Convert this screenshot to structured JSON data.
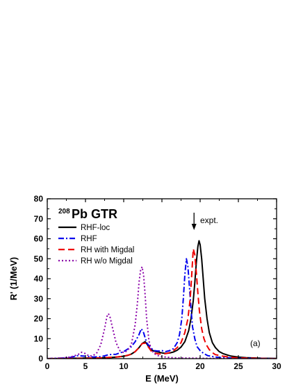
{
  "chart_data": {
    "type": "line",
    "title_superscript": "208",
    "title": "Pb GTR",
    "xlabel": "E (MeV)",
    "ylabel": "R' (1/MeV)",
    "xlim": [
      0,
      30
    ],
    "ylim": [
      0,
      80
    ],
    "xticks": [
      0,
      5,
      10,
      15,
      20,
      25,
      30
    ],
    "yticks": [
      0,
      10,
      20,
      30,
      40,
      50,
      60,
      70,
      80
    ],
    "legend_position": "top-left",
    "annotations": {
      "arrow_label": "expt.",
      "arrow_x": 19.2,
      "panel_label": "(a)"
    },
    "series": [
      {
        "name": "RHF-loc",
        "color": "#000000",
        "dash": "solid",
        "x": [
          0,
          2,
          4,
          6,
          8,
          9,
          10,
          10.5,
          11,
          11.5,
          12,
          12.4,
          12.8,
          13.1,
          13.5,
          14,
          14.5,
          15,
          15.5,
          16,
          16.5,
          17,
          17.5,
          18,
          18.5,
          18.8,
          19.1,
          19.3,
          19.5,
          19.7,
          19.85,
          20,
          20.2,
          20.4,
          20.6,
          20.9,
          21.2,
          21.6,
          22,
          22.5,
          23,
          24,
          25,
          26,
          28,
          30
        ],
        "y": [
          0,
          0.1,
          0.2,
          0.3,
          0.5,
          0.8,
          1.2,
          1.6,
          2.3,
          3.5,
          5.5,
          7.5,
          8.5,
          7,
          4.5,
          3.8,
          3.3,
          2.9,
          2.6,
          2.8,
          3.3,
          4.2,
          5.8,
          8.5,
          14,
          20,
          29,
          38,
          48,
          56,
          59,
          57,
          50,
          40,
          30,
          20,
          13,
          8,
          5.5,
          3.5,
          2.5,
          1.3,
          0.8,
          0.5,
          0.2,
          0.1
        ]
      },
      {
        "name": "RHF",
        "color": "#0000ee",
        "dash": "dashdot",
        "x": [
          0,
          2,
          3,
          4,
          5,
          6,
          7,
          7.5,
          8,
          9,
          10,
          11,
          11.5,
          12,
          12.3,
          12.6,
          13,
          13.5,
          14,
          14.5,
          15,
          15.5,
          16,
          16.5,
          17,
          17.3,
          17.6,
          17.8,
          18,
          18.2,
          18.4,
          18.6,
          18.8,
          19,
          19.3,
          19.6,
          20,
          20.5,
          21,
          22,
          23,
          25,
          28,
          30
        ],
        "y": [
          0,
          0.3,
          0.6,
          1.5,
          1.2,
          0.8,
          1,
          1.4,
          2,
          2.2,
          3.5,
          6,
          8.5,
          12,
          15,
          13,
          8,
          5.5,
          4,
          3.8,
          4,
          3.5,
          4,
          5,
          8,
          12,
          20,
          30,
          42,
          50,
          46,
          36,
          25,
          16,
          10,
          6,
          4,
          2.5,
          1.5,
          0.8,
          0.5,
          0.2,
          0.1,
          0
        ]
      },
      {
        "name": "RH with Migdal",
        "color": "#ee0000",
        "dash": "dashed",
        "x": [
          0,
          3,
          5,
          7,
          9,
          10,
          11,
          11.5,
          12,
          12.4,
          12.8,
          13.2,
          13.6,
          14,
          14.5,
          15,
          15.5,
          16,
          16.5,
          17,
          17.5,
          18,
          18.4,
          18.7,
          18.9,
          19.1,
          19.3,
          19.5,
          19.7,
          19.9,
          20.2,
          20.5,
          20.8,
          21.2,
          21.6,
          22,
          23,
          24,
          25,
          27,
          30
        ],
        "y": [
          0,
          0.1,
          0.2,
          0.4,
          0.8,
          1.2,
          2.2,
          3.5,
          5.5,
          7.5,
          7.8,
          6,
          3.8,
          2.8,
          2.4,
          2.3,
          2.5,
          3,
          4,
          5.5,
          8,
          13,
          20,
          30,
          42,
          55,
          52,
          43,
          33,
          24,
          15,
          10,
          7,
          4.5,
          3,
          2,
          1.2,
          0.7,
          0.4,
          0.2,
          0
        ]
      },
      {
        "name": "RH w/o Migdal",
        "color": "#8a00a8",
        "dash": "dotted",
        "x": [
          0,
          2,
          3,
          4,
          4.5,
          5,
          5.5,
          6,
          6.5,
          7,
          7.5,
          7.8,
          8,
          8.2,
          8.5,
          9,
          9.5,
          10,
          10.5,
          11,
          11.5,
          11.8,
          12,
          12.2,
          12.4,
          12.6,
          12.8,
          13,
          13.3,
          13.6,
          14,
          14.5,
          15,
          16,
          17,
          18,
          20,
          22,
          25,
          30
        ],
        "y": [
          0,
          0.3,
          0.8,
          2,
          3.2,
          2.5,
          1.2,
          1.5,
          3,
          7,
          15,
          21,
          22.5,
          21,
          16,
          8,
          4,
          3,
          4,
          7,
          17,
          28,
          38,
          44,
          46,
          42,
          32,
          20,
          9,
          4.5,
          2.5,
          1.5,
          1,
          0.6,
          0.4,
          0.3,
          0.2,
          0.1,
          0.05,
          0
        ]
      }
    ]
  }
}
